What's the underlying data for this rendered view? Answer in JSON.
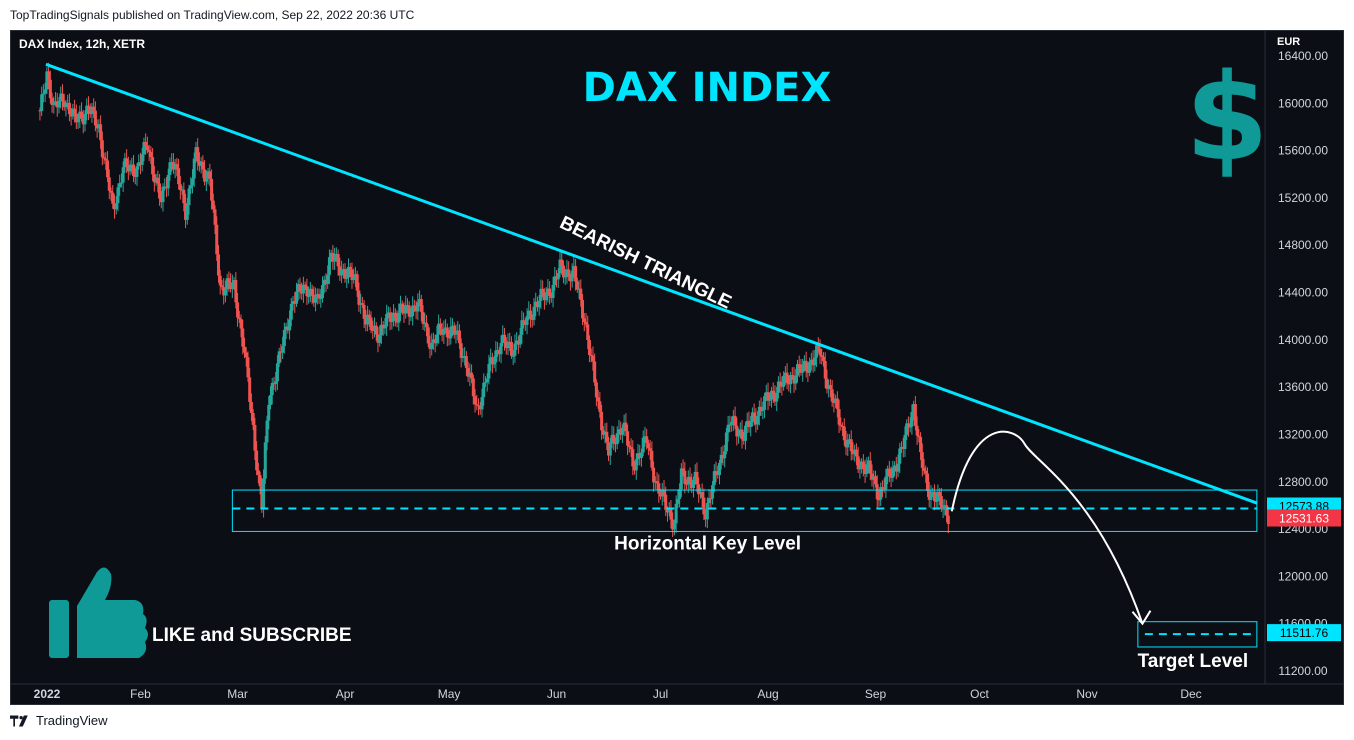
{
  "header": {
    "publisher_line": "TopTradingSignals published on TradingView.com, Sep 22, 2022 20:36 UTC"
  },
  "footer": {
    "brand": "TradingView",
    "brand_icon": "tradingview-logo-icon"
  },
  "chart_data": {
    "type": "candlestick",
    "symbol_label": "DAX Index, 12h, XETR",
    "title": "DAX INDEX",
    "currency": "EUR",
    "ylim": [
      11100,
      16500
    ],
    "y_ticks": [
      "16400.00",
      "16000.00",
      "15600.00",
      "15200.00",
      "14800.00",
      "14400.00",
      "14000.00",
      "13600.00",
      "13200.00",
      "12800.00",
      "12400.00",
      "12000.00",
      "11600.00",
      "11200.00"
    ],
    "x_ticks": [
      {
        "label": "2022",
        "date": "2022-01-01"
      },
      {
        "label": "Feb",
        "date": "2022-02-01"
      },
      {
        "label": "Mar",
        "date": "2022-03-01"
      },
      {
        "label": "Apr",
        "date": "2022-04-01"
      },
      {
        "label": "May",
        "date": "2022-05-01"
      },
      {
        "label": "Jun",
        "date": "2022-06-01"
      },
      {
        "label": "Jul",
        "date": "2022-07-01"
      },
      {
        "label": "Aug",
        "date": "2022-08-01"
      },
      {
        "label": "Sep",
        "date": "2022-09-01"
      },
      {
        "label": "Oct",
        "date": "2022-10-01"
      },
      {
        "label": "Nov",
        "date": "2022-11-01"
      },
      {
        "label": "Dec",
        "date": "2022-12-01"
      }
    ],
    "price_path": [
      {
        "date": "2022-01-03",
        "close": 15900
      },
      {
        "date": "2022-01-05",
        "close": 16271
      },
      {
        "date": "2022-01-07",
        "close": 15950
      },
      {
        "date": "2022-01-10",
        "close": 16050
      },
      {
        "date": "2022-01-13",
        "close": 15850
      },
      {
        "date": "2022-01-17",
        "close": 15950
      },
      {
        "date": "2022-01-20",
        "close": 15800
      },
      {
        "date": "2022-01-24",
        "close": 15100
      },
      {
        "date": "2022-01-27",
        "close": 15450
      },
      {
        "date": "2022-01-31",
        "close": 15450
      },
      {
        "date": "2022-02-03",
        "close": 15650
      },
      {
        "date": "2022-02-07",
        "close": 15150
      },
      {
        "date": "2022-02-10",
        "close": 15550
      },
      {
        "date": "2022-02-14",
        "close": 15100
      },
      {
        "date": "2022-02-17",
        "close": 15550
      },
      {
        "date": "2022-02-21",
        "close": 15350
      },
      {
        "date": "2022-02-24",
        "close": 14450
      },
      {
        "date": "2022-02-28",
        "close": 14450
      },
      {
        "date": "2022-03-03",
        "close": 13900
      },
      {
        "date": "2022-03-07",
        "close": 12850
      },
      {
        "date": "2022-03-08",
        "close": 12600
      },
      {
        "date": "2022-03-10",
        "close": 13500
      },
      {
        "date": "2022-03-14",
        "close": 13950
      },
      {
        "date": "2022-03-17",
        "close": 14350
      },
      {
        "date": "2022-03-21",
        "close": 14450
      },
      {
        "date": "2022-03-24",
        "close": 14300
      },
      {
        "date": "2022-03-28",
        "close": 14700
      },
      {
        "date": "2022-03-31",
        "close": 14600
      },
      {
        "date": "2022-04-04",
        "close": 14500
      },
      {
        "date": "2022-04-07",
        "close": 14150
      },
      {
        "date": "2022-04-11",
        "close": 14050
      },
      {
        "date": "2022-04-14",
        "close": 14200
      },
      {
        "date": "2022-04-19",
        "close": 14250
      },
      {
        "date": "2022-04-22",
        "close": 14300
      },
      {
        "date": "2022-04-26",
        "close": 13950
      },
      {
        "date": "2022-04-29",
        "close": 14100
      },
      {
        "date": "2022-05-03",
        "close": 14050
      },
      {
        "date": "2022-05-06",
        "close": 13800
      },
      {
        "date": "2022-05-09",
        "close": 13400
      },
      {
        "date": "2022-05-12",
        "close": 13700
      },
      {
        "date": "2022-05-16",
        "close": 14000
      },
      {
        "date": "2022-05-19",
        "close": 13900
      },
      {
        "date": "2022-05-23",
        "close": 14150
      },
      {
        "date": "2022-05-26",
        "close": 14300
      },
      {
        "date": "2022-05-31",
        "close": 14450
      },
      {
        "date": "2022-06-02",
        "close": 14600
      },
      {
        "date": "2022-06-06",
        "close": 14550
      },
      {
        "date": "2022-06-09",
        "close": 14200
      },
      {
        "date": "2022-06-13",
        "close": 13450
      },
      {
        "date": "2022-06-16",
        "close": 13050
      },
      {
        "date": "2022-06-20",
        "close": 13300
      },
      {
        "date": "2022-06-23",
        "close": 12950
      },
      {
        "date": "2022-06-27",
        "close": 13150
      },
      {
        "date": "2022-06-30",
        "close": 12750
      },
      {
        "date": "2022-07-05",
        "close": 12450
      },
      {
        "date": "2022-07-07",
        "close": 12850
      },
      {
        "date": "2022-07-11",
        "close": 12800
      },
      {
        "date": "2022-07-14",
        "close": 12550
      },
      {
        "date": "2022-07-18",
        "close": 12950
      },
      {
        "date": "2022-07-21",
        "close": 13300
      },
      {
        "date": "2022-07-25",
        "close": 13200
      },
      {
        "date": "2022-07-28",
        "close": 13350
      },
      {
        "date": "2022-08-01",
        "close": 13500
      },
      {
        "date": "2022-08-04",
        "close": 13600
      },
      {
        "date": "2022-08-08",
        "close": 13700
      },
      {
        "date": "2022-08-11",
        "close": 13750
      },
      {
        "date": "2022-08-16",
        "close": 13900
      },
      {
        "date": "2022-08-19",
        "close": 13550
      },
      {
        "date": "2022-08-23",
        "close": 13200
      },
      {
        "date": "2022-08-26",
        "close": 13000
      },
      {
        "date": "2022-08-30",
        "close": 12900
      },
      {
        "date": "2022-09-02",
        "close": 12700
      },
      {
        "date": "2022-09-06",
        "close": 12900
      },
      {
        "date": "2022-09-09",
        "close": 13100
      },
      {
        "date": "2022-09-12",
        "close": 13450
      },
      {
        "date": "2022-09-14",
        "close": 13000
      },
      {
        "date": "2022-09-16",
        "close": 12750
      },
      {
        "date": "2022-09-20",
        "close": 12600
      },
      {
        "date": "2022-09-22",
        "close": 12531
      }
    ],
    "annotations": {
      "trendline_label": "BEARISH TRIANGLE",
      "trendline": [
        {
          "date": "2022-01-03",
          "price": 16330
        },
        {
          "date": "2022-12-20",
          "price": 12620
        }
      ],
      "key_zone": {
        "from": "2022-03-07",
        "to": "2022-12-20",
        "high": 12730,
        "low": 12380,
        "mid": 12573.88
      },
      "key_zone_label": "Horizontal Key Level",
      "target_zone": {
        "from": "2022-11-20",
        "to": "2022-12-20",
        "high": 11600,
        "low": 11420,
        "mid": 11511.76
      },
      "target_label": "Target Level",
      "forecast_path": [
        {
          "date": "2022-09-23",
          "price": 12550
        },
        {
          "date": "2022-10-14",
          "price": 13120
        },
        {
          "date": "2022-11-01",
          "price": 12700
        },
        {
          "date": "2022-11-17",
          "price": 11600
        }
      ],
      "cta_label": "LIKE and SUBSCRIBE",
      "cta_icon": "thumbs-up-icon",
      "currency_icon": "dollar-sign-icon"
    },
    "price_labels": [
      {
        "value": "12573.88",
        "color": "#00e5ff",
        "text_color": "#000000"
      },
      {
        "value": "12531.63",
        "color": "#f23645",
        "text_color": "#ffffff"
      },
      {
        "value": "11511.76",
        "color": "#00e5ff",
        "text_color": "#000000"
      }
    ],
    "colors": {
      "up": "#26a69a",
      "down": "#ef5350",
      "accent": "#00e5ff",
      "teal_icon": "#0f9a97"
    }
  }
}
